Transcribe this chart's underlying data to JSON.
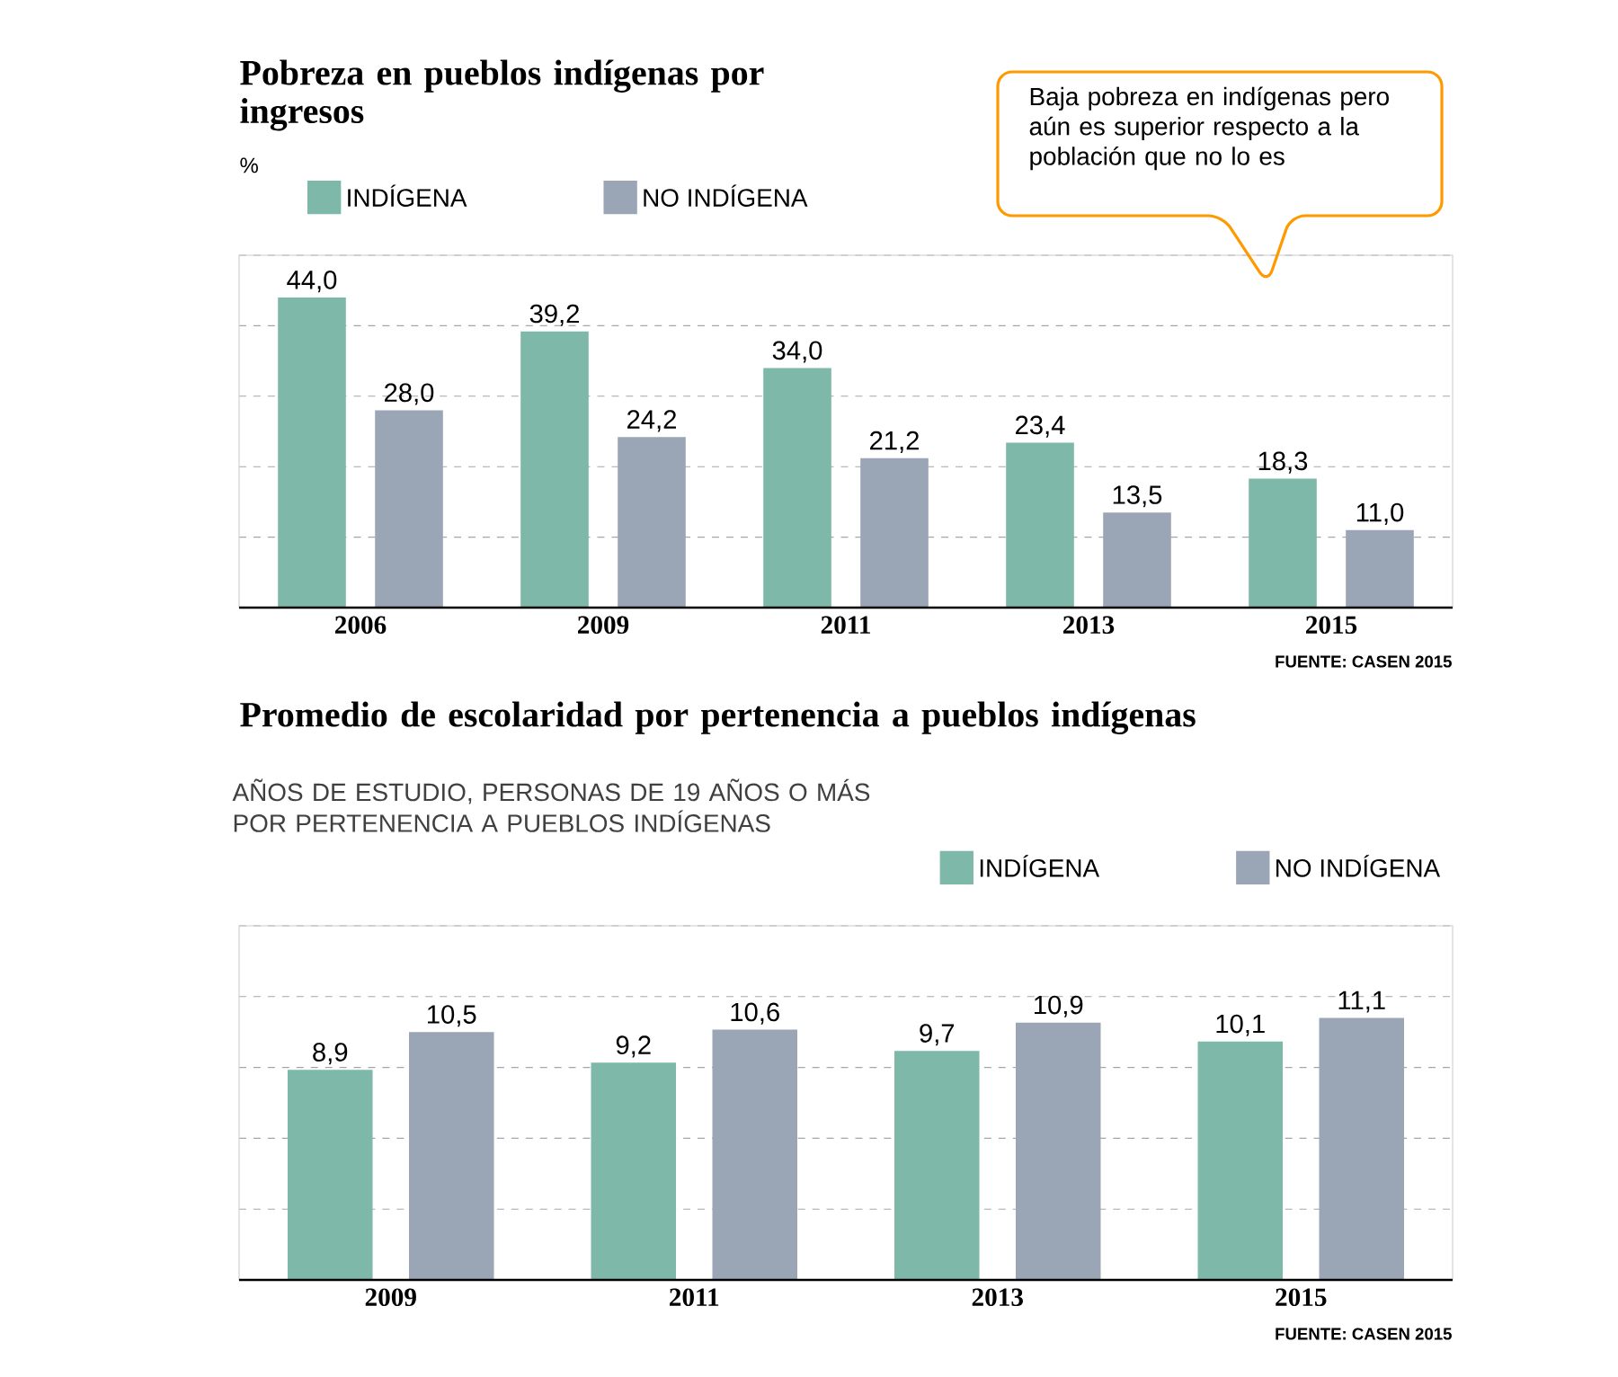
{
  "chart_data": [
    {
      "type": "bar",
      "title": "Pobreza en pueblos indígenas por ingresos",
      "ylabel": "%",
      "categories": [
        "2006",
        "2009",
        "2011",
        "2013",
        "2015"
      ],
      "series": [
        {
          "name": "INDÍGENA",
          "color": "#7db8a9",
          "values": [
            44.0,
            39.2,
            34.0,
            23.4,
            18.3
          ],
          "value_labels": [
            "44,0",
            "39,2",
            "34,0",
            "23,4",
            "18,3"
          ]
        },
        {
          "name": "NO INDÍGENA",
          "color": "#9aa5b5",
          "values": [
            28.0,
            24.2,
            21.2,
            13.5,
            11.0
          ],
          "value_labels": [
            "28,0",
            "24,2",
            "21,2",
            "13,5",
            "11,0"
          ]
        }
      ],
      "ylim": [
        0,
        50
      ],
      "yticks": [
        {
          "value": 0,
          "label": null
        },
        {
          "value": 10,
          "label": null
        },
        {
          "value": 20,
          "label": null
        },
        {
          "value": 30,
          "label": null
        },
        {
          "value": 40,
          "label": null
        },
        {
          "value": 50,
          "label": null
        }
      ],
      "tick_labels": "x",
      "grid": "y",
      "legend": "top",
      "annotations": [
        "Baja pobreza en  indígenas pero aún es superior respecto a la población que no lo es",
        "FUENTE: CASEN 2015"
      ]
    },
    {
      "type": "bar",
      "title": "Promedio de escolaridad por pertenencia a pueblos indígenas",
      "subtitle": "AÑOS DE ESTUDIO, PERSONAS DE 19 AÑOS O MÁS POR PERTENENCIA A PUEBLOS INDÍGENAS",
      "categories": [
        "2009",
        "2011",
        "2013",
        "2015"
      ],
      "series": [
        {
          "name": "INDÍGENA",
          "color": "#7db8a9",
          "values": [
            8.9,
            9.2,
            9.7,
            10.1
          ],
          "value_labels": [
            "8,9",
            "9,2",
            "9,7",
            "10,1"
          ]
        },
        {
          "name": "NO INDÍGENA",
          "color": "#9aa5b5",
          "values": [
            10.5,
            10.6,
            10.9,
            11.1
          ],
          "value_labels": [
            "10,5",
            "10,6",
            "10,9",
            "11,1"
          ]
        }
      ],
      "ylim": [
        0,
        15
      ],
      "yticks": [
        {
          "value": 0,
          "label": null
        },
        {
          "value": 3,
          "label": null
        },
        {
          "value": 6,
          "label": null
        },
        {
          "value": 9,
          "label": null
        },
        {
          "value": 12,
          "label": null
        },
        {
          "value": 15,
          "label": null
        }
      ],
      "tick_labels": "x",
      "grid": "y",
      "legend": "top right",
      "annotations": [
        "FUENTE: CASEN 2015"
      ]
    }
  ]
}
